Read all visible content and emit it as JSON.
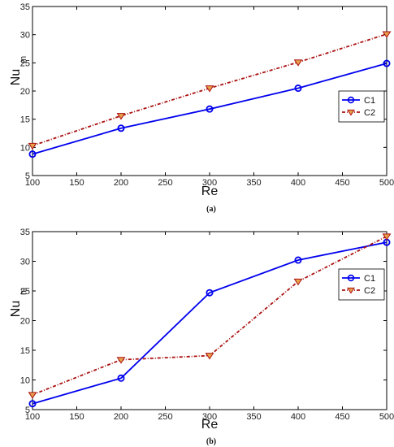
{
  "chart_data": [
    {
      "type": "line",
      "panel_label": "(a)",
      "xlabel": "Re",
      "ylabel_main": "Nu",
      "ylabel_sub": "m",
      "xlim": [
        100,
        500
      ],
      "ylim": [
        5,
        35
      ],
      "xticks": [
        100,
        150,
        200,
        250,
        300,
        350,
        400,
        450,
        500
      ],
      "yticks": [
        5,
        10,
        15,
        20,
        25,
        30,
        35
      ],
      "grid": false,
      "legend_position": "right",
      "x": [
        100,
        200,
        300,
        400,
        500
      ],
      "series": [
        {
          "name": "C1",
          "color": "#0000ee",
          "marker": "circle",
          "line": "solid",
          "values": [
            8.8,
            13.4,
            16.8,
            20.5,
            24.9
          ]
        },
        {
          "name": "C2",
          "color": "#aa1111",
          "marker": "triangle-down",
          "line": "dash-dot",
          "values": [
            10.3,
            15.6,
            20.5,
            25.1,
            30.1
          ]
        }
      ]
    },
    {
      "type": "line",
      "panel_label": "(b)",
      "xlabel": "Re",
      "ylabel_main": "Nu",
      "ylabel_sub": "m",
      "xlim": [
        100,
        500
      ],
      "ylim": [
        5,
        35
      ],
      "xticks": [
        100,
        150,
        200,
        250,
        300,
        350,
        400,
        450,
        500
      ],
      "yticks": [
        5,
        10,
        15,
        20,
        25,
        30,
        35
      ],
      "grid": false,
      "legend_position": "right",
      "x": [
        100,
        200,
        300,
        400,
        500
      ],
      "series": [
        {
          "name": "C1",
          "color": "#0000ee",
          "marker": "circle",
          "line": "solid",
          "values": [
            6.0,
            10.3,
            24.7,
            30.2,
            33.2
          ]
        },
        {
          "name": "C2",
          "color": "#aa1111",
          "marker": "triangle-down",
          "line": "dash-dot",
          "values": [
            7.5,
            13.4,
            14.1,
            26.6,
            34.2
          ]
        }
      ]
    }
  ]
}
